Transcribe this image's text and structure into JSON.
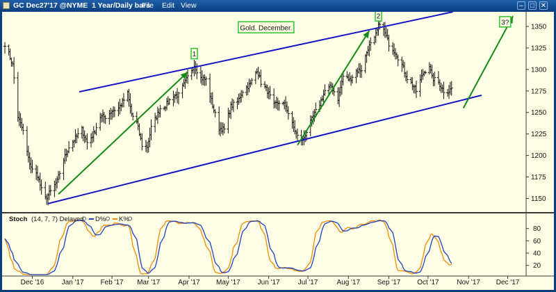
{
  "window": {
    "title": "GC Dec27'17 @NYME  1 Year/Daily bars",
    "menus": [
      "File",
      "Edit",
      "View"
    ]
  },
  "chart_data": {
    "type": "bar",
    "instrument": "GC Dec27'17 @NYME",
    "period": "1 Year/Daily bars",
    "annotation": "Gold. December.",
    "price_axis": {
      "ylim": [
        1135,
        1367
      ],
      "ticks": [
        1150,
        1175,
        1200,
        1225,
        1250,
        1275,
        1300,
        1325,
        1350
      ]
    },
    "time_axis": {
      "xlim": [
        "2016-11-25",
        "2017-12-28"
      ],
      "labels": [
        {
          "date": "2016-12-16",
          "label": "Dec '16"
        },
        {
          "date": "2017-01-16",
          "label": "Jan '17"
        },
        {
          "date": "2017-02-15",
          "label": "Feb '17"
        },
        {
          "date": "2017-03-15",
          "label": "Mar '17"
        },
        {
          "date": "2017-04-15",
          "label": "Apr '17"
        },
        {
          "date": "2017-05-15",
          "label": "May '17"
        },
        {
          "date": "2017-06-15",
          "label": "Jun '17"
        },
        {
          "date": "2017-07-15",
          "label": "Jul '17"
        },
        {
          "date": "2017-08-15",
          "label": "Aug '17"
        },
        {
          "date": "2017-09-15",
          "label": "Sep '17"
        },
        {
          "date": "2017-10-15",
          "label": "Oct '17"
        },
        {
          "date": "2017-11-15",
          "label": "Nov '17"
        },
        {
          "date": "2017-12-15",
          "label": "Dec '17"
        }
      ]
    },
    "price_anchors": [
      [
        "2016-11-25",
        1330
      ],
      [
        "2016-11-28",
        1318
      ],
      [
        "2016-12-01",
        1305
      ],
      [
        "2016-12-05",
        1245
      ],
      [
        "2016-12-09",
        1228
      ],
      [
        "2016-12-13",
        1196
      ],
      [
        "2016-12-16",
        1183
      ],
      [
        "2016-12-20",
        1177
      ],
      [
        "2016-12-23",
        1160
      ],
      [
        "2016-12-26",
        1150
      ],
      [
        "2016-12-30",
        1158
      ],
      [
        "2017-01-04",
        1170
      ],
      [
        "2017-01-09",
        1195
      ],
      [
        "2017-01-13",
        1210
      ],
      [
        "2017-01-18",
        1220
      ],
      [
        "2017-01-23",
        1230
      ],
      [
        "2017-01-27",
        1215
      ],
      [
        "2017-02-01",
        1225
      ],
      [
        "2017-02-06",
        1245
      ],
      [
        "2017-02-10",
        1245
      ],
      [
        "2017-02-15",
        1252
      ],
      [
        "2017-02-20",
        1255
      ],
      [
        "2017-02-23",
        1262
      ],
      [
        "2017-02-27",
        1272
      ],
      [
        "2017-03-02",
        1248
      ],
      [
        "2017-03-06",
        1238
      ],
      [
        "2017-03-10",
        1212
      ],
      [
        "2017-03-14",
        1210
      ],
      [
        "2017-03-17",
        1232
      ],
      [
        "2017-03-21",
        1245
      ],
      [
        "2017-03-24",
        1255
      ],
      [
        "2017-03-28",
        1258
      ],
      [
        "2017-04-03",
        1270
      ],
      [
        "2017-04-07",
        1270
      ],
      [
        "2017-04-12",
        1285
      ],
      [
        "2017-04-17",
        1300
      ],
      [
        "2017-04-19",
        1305
      ],
      [
        "2017-04-24",
        1290
      ],
      [
        "2017-04-28",
        1288
      ],
      [
        "2017-05-03",
        1258
      ],
      [
        "2017-05-08",
        1232
      ],
      [
        "2017-05-12",
        1230
      ],
      [
        "2017-05-17",
        1257
      ],
      [
        "2017-05-22",
        1262
      ],
      [
        "2017-05-26",
        1275
      ],
      [
        "2017-06-01",
        1283
      ],
      [
        "2017-06-06",
        1300
      ],
      [
        "2017-06-09",
        1285
      ],
      [
        "2017-06-14",
        1275
      ],
      [
        "2017-06-19",
        1258
      ],
      [
        "2017-06-23",
        1262
      ],
      [
        "2017-06-28",
        1258
      ],
      [
        "2017-07-03",
        1236
      ],
      [
        "2017-07-07",
        1222
      ],
      [
        "2017-07-11",
        1218
      ],
      [
        "2017-07-14",
        1228
      ],
      [
        "2017-07-19",
        1245
      ],
      [
        "2017-07-24",
        1260
      ],
      [
        "2017-07-28",
        1275
      ],
      [
        "2017-08-02",
        1280
      ],
      [
        "2017-08-07",
        1266
      ],
      [
        "2017-08-11",
        1292
      ],
      [
        "2017-08-16",
        1288
      ],
      [
        "2017-08-21",
        1298
      ],
      [
        "2017-08-25",
        1300
      ],
      [
        "2017-08-30",
        1325
      ],
      [
        "2017-09-04",
        1335
      ],
      [
        "2017-09-08",
        1355
      ],
      [
        "2017-09-12",
        1342
      ],
      [
        "2017-09-15",
        1330
      ],
      [
        "2017-09-20",
        1320
      ],
      [
        "2017-09-25",
        1305
      ],
      [
        "2017-09-29",
        1290
      ],
      [
        "2017-10-04",
        1280
      ],
      [
        "2017-10-06",
        1275
      ],
      [
        "2017-10-11",
        1295
      ],
      [
        "2017-10-16",
        1305
      ],
      [
        "2017-10-18",
        1290
      ],
      [
        "2017-10-23",
        1285
      ],
      [
        "2017-10-27",
        1275
      ],
      [
        "2017-10-31",
        1275
      ],
      [
        "2017-11-02",
        1278
      ]
    ],
    "channel": {
      "upper": [
        [
          "2017-01-21",
          1274
        ],
        [
          "2017-11-03",
          1367
        ]
      ],
      "lower": [
        [
          "2016-12-28",
          1144
        ],
        [
          "2017-11-25",
          1270
        ]
      ]
    },
    "wave_arrows": [
      {
        "from": [
          "2017-01-05",
          1155
        ],
        "to": [
          "2017-04-14",
          1297
        ],
        "label": "1",
        "label_at": [
          "2017-04-19",
          1318
        ]
      },
      {
        "from": [
          "2017-07-07",
          1212
        ],
        "to": [
          "2017-08-31",
          1345
        ],
        "label": "2",
        "label_at": [
          "2017-09-07",
          1362
        ]
      },
      {
        "from": [
          "2017-11-11",
          1255
        ],
        "to": [
          "2017-12-19",
          1362
        ],
        "label": "3?",
        "label_at": [
          "2017-12-13",
          1355
        ]
      }
    ],
    "stochastic": {
      "title": "Stoch",
      "params": "(14, 7, 7) Delayed",
      "series": [
        {
          "name": "D%",
          "color": "#1f3fbf"
        },
        {
          "name": "K%",
          "color": "#f08a00"
        }
      ],
      "ylim": [
        5,
        100
      ],
      "ticks": [
        20,
        40,
        60,
        80
      ]
    }
  },
  "colors": {
    "background": "#ffffe6",
    "price_bars": "#111111",
    "channel": "#1414c8",
    "arrows": "#138a13",
    "label_box": "#2fc12f"
  }
}
